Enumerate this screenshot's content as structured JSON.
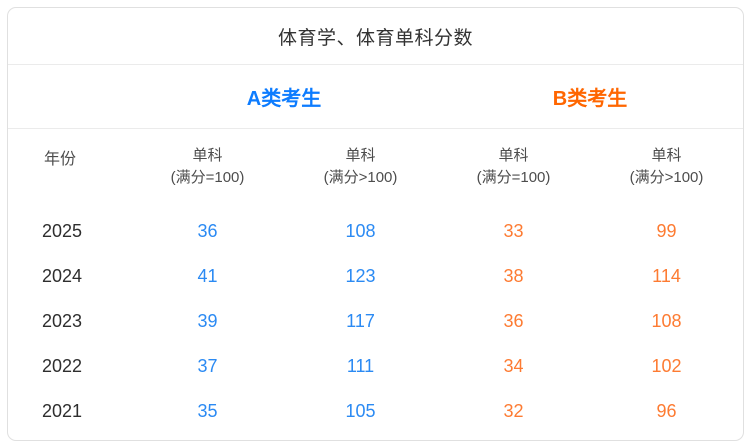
{
  "chart_data": {
    "type": "table",
    "title": "体育学、体育单科分数",
    "groups": {
      "a": {
        "label": "A类考生",
        "color": "#0d7cff",
        "value_color": "#2b8af3"
      },
      "b": {
        "label": "B类考生",
        "color": "#ff6600",
        "value_color": "#fd7b32"
      }
    },
    "headers": {
      "year": "年份",
      "subject": "单科",
      "full_eq_100": "(满分=100)",
      "full_gt_100": "(满分>100)"
    },
    "rows": [
      {
        "year": "2025",
        "a_eq": "36",
        "a_gt": "108",
        "b_eq": "33",
        "b_gt": "99"
      },
      {
        "year": "2024",
        "a_eq": "41",
        "a_gt": "123",
        "b_eq": "38",
        "b_gt": "114"
      },
      {
        "year": "2023",
        "a_eq": "39",
        "a_gt": "117",
        "b_eq": "36",
        "b_gt": "108"
      },
      {
        "year": "2022",
        "a_eq": "37",
        "a_gt": "111",
        "b_eq": "34",
        "b_gt": "102"
      },
      {
        "year": "2021",
        "a_eq": "35",
        "a_gt": "105",
        "b_eq": "32",
        "b_gt": "96"
      }
    ]
  }
}
